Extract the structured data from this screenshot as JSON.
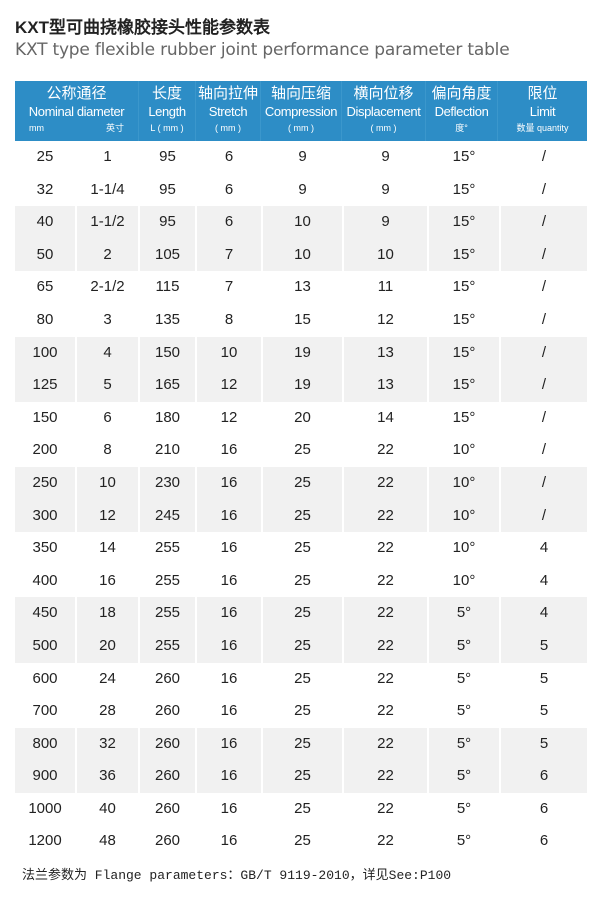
{
  "title_cn": "KXT型可曲挠橡胶接头性能参数表",
  "title_en": "KXT type flexible rubber joint performance parameter table",
  "headers": [
    {
      "zh": "公称通径",
      "en": "Nominal diameter",
      "unit_left": "mm",
      "unit_right": "英寸"
    },
    {
      "zh": "长度",
      "en": "Length",
      "unit": "L ( mm )"
    },
    {
      "zh": "轴向拉伸",
      "en": "Stretch",
      "unit": "( mm )"
    },
    {
      "zh": "轴向压缩",
      "en": "Compression",
      "unit": "( mm )"
    },
    {
      "zh": "横向位移",
      "en": "Displacement",
      "unit": "( mm )"
    },
    {
      "zh": "偏向角度",
      "en": "Deflection",
      "unit": "度°"
    },
    {
      "zh": "限位",
      "en": "Limit",
      "unit": "数量 quantity"
    }
  ],
  "rows": [
    [
      "25",
      "1",
      "95",
      "6",
      "9",
      "9",
      "15°",
      "/"
    ],
    [
      "32",
      "1-1/4",
      "95",
      "6",
      "9",
      "9",
      "15°",
      "/"
    ],
    [
      "40",
      "1-1/2",
      "95",
      "6",
      "10",
      "9",
      "15°",
      "/"
    ],
    [
      "50",
      "2",
      "105",
      "7",
      "10",
      "10",
      "15°",
      "/"
    ],
    [
      "65",
      "2-1/2",
      "115",
      "7",
      "13",
      "11",
      "15°",
      "/"
    ],
    [
      "80",
      "3",
      "135",
      "8",
      "15",
      "12",
      "15°",
      "/"
    ],
    [
      "100",
      "4",
      "150",
      "10",
      "19",
      "13",
      "15°",
      "/"
    ],
    [
      "125",
      "5",
      "165",
      "12",
      "19",
      "13",
      "15°",
      "/"
    ],
    [
      "150",
      "6",
      "180",
      "12",
      "20",
      "14",
      "15°",
      "/"
    ],
    [
      "200",
      "8",
      "210",
      "16",
      "25",
      "22",
      "10°",
      "/"
    ],
    [
      "250",
      "10",
      "230",
      "16",
      "25",
      "22",
      "10°",
      "/"
    ],
    [
      "300",
      "12",
      "245",
      "16",
      "25",
      "22",
      "10°",
      "/"
    ],
    [
      "350",
      "14",
      "255",
      "16",
      "25",
      "22",
      "10°",
      "4"
    ],
    [
      "400",
      "16",
      "255",
      "16",
      "25",
      "22",
      "10°",
      "4"
    ],
    [
      "450",
      "18",
      "255",
      "16",
      "25",
      "22",
      "5°",
      "4"
    ],
    [
      "500",
      "20",
      "255",
      "16",
      "25",
      "22",
      "5°",
      "5"
    ],
    [
      "600",
      "24",
      "260",
      "16",
      "25",
      "22",
      "5°",
      "5"
    ],
    [
      "700",
      "28",
      "260",
      "16",
      "25",
      "22",
      "5°",
      "5"
    ],
    [
      "800",
      "32",
      "260",
      "16",
      "25",
      "22",
      "5°",
      "5"
    ],
    [
      "900",
      "36",
      "260",
      "16",
      "25",
      "22",
      "5°",
      "6"
    ],
    [
      "1000",
      "40",
      "260",
      "16",
      "25",
      "22",
      "5°",
      "6"
    ],
    [
      "1200",
      "48",
      "260",
      "16",
      "25",
      "22",
      "5°",
      "6"
    ]
  ],
  "footer": "法兰参数为 Flange parameters：GB/T 9119-2010，详见See:P100",
  "colors": {
    "header": "#2d8dc6",
    "stripe": "#f1f1f1"
  }
}
